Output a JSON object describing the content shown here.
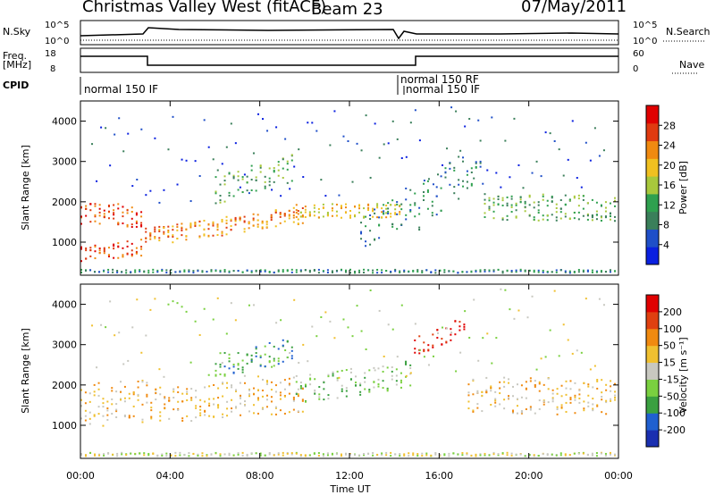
{
  "header": {
    "station": "Christmas Valley West (fitACF)",
    "beam": "Beam 23",
    "date": "07/May/2011"
  },
  "side_labels": {
    "nsky": "N.Sky",
    "nsearch": "N.Search",
    "freq": "Freq.",
    "freq_unit": "[MHz]",
    "nave": "Nave",
    "cpid": "CPID"
  },
  "noise_panel": {
    "left_ticks": [
      "10^5",
      "10^0"
    ],
    "right_ticks": [
      "10^5",
      "10^0"
    ]
  },
  "freq_panel": {
    "left_ticks": [
      "18",
      "8"
    ],
    "right_ticks": [
      "60",
      "0"
    ]
  },
  "cpid_panel": {
    "labels": [
      "normal 150 IF",
      "normal 150 RF",
      "normal 150 IF"
    ]
  },
  "chart_data": [
    {
      "type": "heatmap",
      "name": "power",
      "ylabel": "Slant Range [km]",
      "yticks": [
        "4000",
        "3000",
        "2000",
        "1000"
      ],
      "colorbar_label": "Power [dB]",
      "colorbar_ticks": [
        "28",
        "24",
        "20",
        "16",
        "12",
        "8",
        "4"
      ],
      "colors": [
        "#0a20e0",
        "#1f4fc8",
        "#3a7f5a",
        "#2fa04f",
        "#a8c83c",
        "#f0c020",
        "#f08a10",
        "#e03a10",
        "#e00000"
      ]
    },
    {
      "type": "heatmap",
      "name": "velocity",
      "ylabel": "Slant Range [km]",
      "yticks": [
        "4000",
        "3000",
        "2000",
        "1000"
      ],
      "colorbar_label": "Velocity [m s⁻¹]",
      "colorbar_ticks": [
        "200",
        "100",
        "50",
        "15",
        "-15",
        "-50",
        "-100",
        "-200"
      ],
      "colors": [
        "#1a2fb0",
        "#2060d0",
        "#3aa040",
        "#7ad040",
        "#c8c8c0",
        "#f0c030",
        "#f08a10",
        "#e04010",
        "#e00000"
      ]
    }
  ],
  "xaxis": {
    "label": "Time UT",
    "ticks": [
      "00:00",
      "04:00",
      "08:00",
      "12:00",
      "16:00",
      "20:00",
      "00:00"
    ]
  }
}
